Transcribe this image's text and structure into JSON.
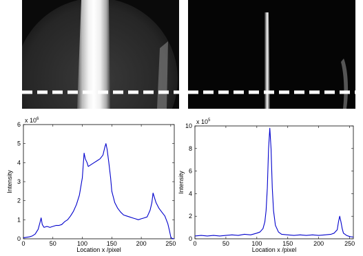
{
  "images": {
    "left": {
      "dash_color": "#ffffff"
    },
    "right": {
      "dash_color": "#ffffff"
    }
  },
  "chart_data": [
    {
      "type": "line",
      "xlabel": "Location x /pixel",
      "ylabel": "Intensity",
      "y_exponent_base": "x 10",
      "y_exponent_power": "6",
      "xlim": [
        0,
        256
      ],
      "ylim": [
        0,
        6
      ],
      "xticks": [
        0,
        50,
        100,
        150,
        200,
        250
      ],
      "yticks": [
        0,
        1,
        2,
        3,
        4,
        5,
        6
      ],
      "grid": false,
      "series": [
        {
          "color": "#0000cc",
          "x": [
            0,
            5,
            10,
            15,
            20,
            25,
            28,
            30,
            32,
            35,
            40,
            45,
            50,
            55,
            60,
            65,
            70,
            75,
            80,
            85,
            90,
            95,
            100,
            103,
            105,
            108,
            110,
            115,
            120,
            125,
            130,
            135,
            138,
            140,
            142,
            145,
            148,
            150,
            155,
            160,
            165,
            170,
            175,
            180,
            185,
            190,
            195,
            200,
            205,
            210,
            215,
            218,
            220,
            223,
            225,
            230,
            235,
            240,
            245,
            248,
            250,
            252,
            256
          ],
          "y": [
            0.05,
            0.08,
            0.1,
            0.15,
            0.25,
            0.5,
            0.85,
            1.1,
            0.75,
            0.6,
            0.65,
            0.6,
            0.65,
            0.7,
            0.7,
            0.75,
            0.9,
            1.0,
            1.2,
            1.45,
            1.8,
            2.3,
            3.2,
            4.5,
            4.2,
            4.0,
            3.8,
            3.9,
            4.0,
            4.1,
            4.2,
            4.4,
            4.8,
            5.0,
            4.7,
            4.0,
            3.2,
            2.5,
            1.9,
            1.6,
            1.4,
            1.25,
            1.2,
            1.15,
            1.1,
            1.05,
            1.0,
            1.05,
            1.1,
            1.15,
            1.5,
            1.9,
            2.4,
            2.1,
            1.9,
            1.6,
            1.4,
            1.2,
            0.8,
            0.4,
            0.1,
            0.02,
            0.0
          ]
        }
      ]
    },
    {
      "type": "line",
      "xlabel": "Location x /pixel",
      "ylabel": "Intensity",
      "y_exponent_base": "x 10",
      "y_exponent_power": "5",
      "xlim": [
        0,
        256
      ],
      "ylim": [
        0,
        10
      ],
      "xticks": [
        0,
        50,
        100,
        150,
        200,
        250
      ],
      "yticks": [
        0,
        2,
        4,
        6,
        8,
        10
      ],
      "grid": false,
      "series": [
        {
          "color": "#0000cc",
          "x": [
            0,
            10,
            20,
            30,
            40,
            50,
            60,
            70,
            80,
            90,
            100,
            105,
            110,
            113,
            115,
            117,
            119,
            121,
            123,
            125,
            127,
            130,
            135,
            140,
            150,
            160,
            170,
            180,
            190,
            200,
            210,
            220,
            225,
            230,
            232,
            234,
            236,
            238,
            240,
            245,
            250,
            256
          ],
          "y": [
            0.25,
            0.3,
            0.25,
            0.3,
            0.25,
            0.3,
            0.35,
            0.3,
            0.4,
            0.35,
            0.5,
            0.6,
            0.9,
            1.5,
            2.5,
            4.5,
            8.0,
            9.8,
            8.0,
            4.5,
            2.5,
            1.2,
            0.6,
            0.4,
            0.35,
            0.3,
            0.35,
            0.3,
            0.35,
            0.3,
            0.35,
            0.4,
            0.5,
            0.8,
            1.5,
            2.0,
            1.5,
            0.9,
            0.5,
            0.3,
            0.2,
            0.15
          ]
        }
      ]
    }
  ]
}
